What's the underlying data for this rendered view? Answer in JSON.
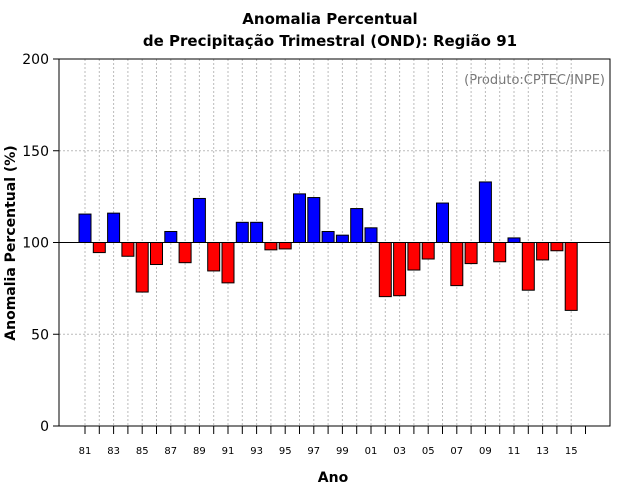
{
  "chart_data": {
    "type": "bar",
    "title_line1": "Anomalia Percentual",
    "title_line2": "de Precipitação Trimestral (OND): Região 91",
    "xlabel": "Ano",
    "ylabel": "Anomalia Percentual (%)",
    "credit": "(Produto:CPTEC/INPE)",
    "ylim": [
      0,
      200
    ],
    "yticks": [
      0,
      50,
      100,
      150,
      200
    ],
    "baseline": 100,
    "grid": true,
    "colors": {
      "above": "#0000ff",
      "below": "#ff0000",
      "grid": "#bbbbbb"
    },
    "categories": [
      "81",
      "82",
      "83",
      "84",
      "85",
      "86",
      "87",
      "88",
      "89",
      "90",
      "91",
      "92",
      "93",
      "94",
      "95",
      "96",
      "97",
      "98",
      "99",
      "00",
      "01",
      "02",
      "03",
      "04",
      "05",
      "06",
      "07",
      "08",
      "09",
      "10",
      "11",
      "12",
      "13",
      "14",
      "15"
    ],
    "xtick_labels": [
      "81",
      "",
      "83",
      "",
      "85",
      "",
      "87",
      "",
      "89",
      "",
      "91",
      "",
      "93",
      "",
      "95",
      "",
      "97",
      "",
      "99",
      "",
      "01",
      "",
      "03",
      "",
      "05",
      "",
      "07",
      "",
      "09",
      "",
      "11",
      "",
      "13",
      "",
      "15"
    ],
    "values": [
      115.5,
      94.5,
      116,
      92.5,
      73,
      88,
      106,
      89,
      124,
      84.5,
      78,
      111,
      111,
      96,
      96.5,
      126.5,
      124.5,
      106,
      104,
      118.5,
      108,
      70.5,
      71,
      85,
      91,
      121.5,
      76.5,
      88.5,
      133,
      89.5,
      102.5,
      74,
      90.5,
      95.5,
      63
    ]
  }
}
